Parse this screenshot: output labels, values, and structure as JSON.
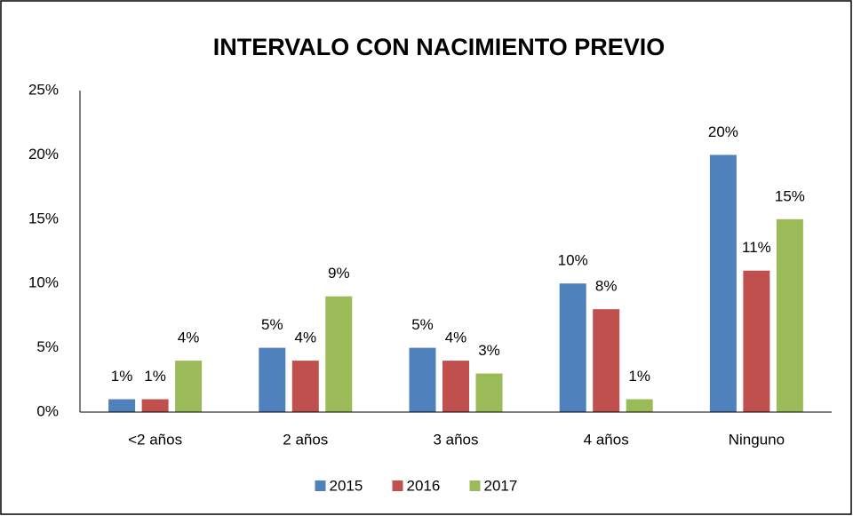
{
  "chart_data": {
    "type": "bar",
    "title": "INTERVALO CON NACIMIENTO PREVIO",
    "categories": [
      "<2 años",
      "2 años",
      "3 años",
      "4 años",
      "Ninguno"
    ],
    "series": [
      {
        "name": "2015",
        "color": "#4f81bd",
        "values": [
          1,
          5,
          5,
          10,
          20
        ],
        "value_labels": [
          "1%",
          "5%",
          "5%",
          "10%",
          "20%"
        ]
      },
      {
        "name": "2016",
        "color": "#c0504d",
        "values": [
          1,
          4,
          4,
          8,
          11
        ],
        "value_labels": [
          "1%",
          "4%",
          "4%",
          "8%",
          "11%"
        ]
      },
      {
        "name": "2017",
        "color": "#9bbb59",
        "values": [
          4,
          9,
          3,
          1,
          15
        ],
        "value_labels": [
          "4%",
          "9%",
          "3%",
          "1%",
          "15%"
        ]
      }
    ],
    "ylim": [
      0,
      25
    ],
    "yticks": [
      {
        "value": 0,
        "label": "0%"
      },
      {
        "value": 5,
        "label": "5%"
      },
      {
        "value": 10,
        "label": "10%"
      },
      {
        "value": 15,
        "label": "15%"
      },
      {
        "value": 20,
        "label": "20%"
      },
      {
        "value": 25,
        "label": "25%"
      }
    ],
    "grid": false,
    "legend": "bottom"
  }
}
